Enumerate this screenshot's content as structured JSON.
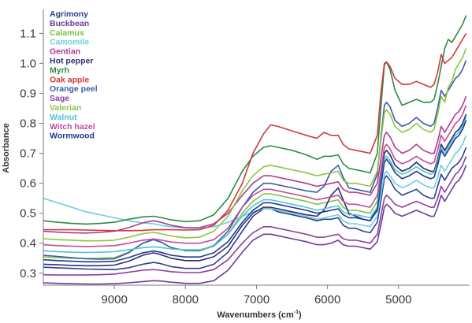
{
  "chart_data": {
    "type": "line",
    "xlabel": "Wavenumbers (cm",
    "xlabel_sup": "-1",
    "xlabel_close": ")",
    "ylabel": "Absorbance",
    "x_reversed": true,
    "xlim": [
      10000,
      4000
    ],
    "ylim": [
      0.26,
      1.18
    ],
    "x_ticks": [
      9000,
      8000,
      7000,
      6000,
      5000
    ],
    "y_ticks": [
      0.3,
      0.4,
      0.5,
      0.6,
      0.7,
      0.8,
      0.9,
      1.0,
      1.1
    ],
    "grid": false,
    "legend_position": "top-left",
    "x": [
      10000,
      9800,
      9600,
      9400,
      9200,
      9000,
      8800,
      8600,
      8450,
      8350,
      8200,
      8000,
      7800,
      7600,
      7400,
      7200,
      7050,
      6900,
      6800,
      6700,
      6500,
      6300,
      6150,
      6050,
      5950,
      5850,
      5780,
      5700,
      5600,
      5500,
      5400,
      5300,
      5250,
      5200,
      5170,
      5120,
      5050,
      4950,
      4850,
      4750,
      4650,
      4550,
      4500,
      4450,
      4400,
      4350,
      4300,
      4250,
      4200,
      4150,
      4100,
      4050
    ],
    "series": [
      {
        "name": "Agrimony",
        "color": "#2b3f8f",
        "values": [
          0.32,
          0.318,
          0.316,
          0.314,
          0.313,
          0.312,
          0.318,
          0.33,
          0.336,
          0.332,
          0.322,
          0.316,
          0.316,
          0.33,
          0.37,
          0.44,
          0.49,
          0.515,
          0.515,
          0.505,
          0.495,
          0.485,
          0.475,
          0.48,
          0.48,
          0.485,
          0.46,
          0.45,
          0.45,
          0.44,
          0.435,
          0.47,
          0.54,
          0.615,
          0.625,
          0.61,
          0.58,
          0.56,
          0.57,
          0.58,
          0.56,
          0.55,
          0.55,
          0.59,
          0.63,
          0.61,
          0.63,
          0.65,
          0.66,
          0.67,
          0.69,
          0.72
        ]
      },
      {
        "name": "Buckbean",
        "color": "#6a3d9a",
        "values": [
          0.268,
          0.266,
          0.265,
          0.264,
          0.264,
          0.265,
          0.268,
          0.272,
          0.275,
          0.274,
          0.27,
          0.266,
          0.266,
          0.275,
          0.31,
          0.37,
          0.41,
          0.43,
          0.43,
          0.425,
          0.415,
          0.405,
          0.395,
          0.395,
          0.4,
          0.41,
          0.395,
          0.39,
          0.39,
          0.385,
          0.38,
          0.405,
          0.46,
          0.52,
          0.53,
          0.52,
          0.5,
          0.49,
          0.5,
          0.51,
          0.5,
          0.49,
          0.49,
          0.52,
          0.56,
          0.54,
          0.56,
          0.58,
          0.6,
          0.61,
          0.63,
          0.66
        ]
      },
      {
        "name": "Calamus",
        "color": "#7dc243",
        "values": [
          0.355,
          0.352,
          0.35,
          0.349,
          0.35,
          0.352,
          0.37,
          0.4,
          0.415,
          0.405,
          0.385,
          0.375,
          0.375,
          0.39,
          0.43,
          0.5,
          0.54,
          0.565,
          0.565,
          0.56,
          0.55,
          0.54,
          0.53,
          0.535,
          0.54,
          0.545,
          0.52,
          0.51,
          0.51,
          0.505,
          0.5,
          0.54,
          0.62,
          0.7,
          0.71,
          0.695,
          0.66,
          0.64,
          0.65,
          0.67,
          0.65,
          0.64,
          0.64,
          0.68,
          0.73,
          0.71,
          0.73,
          0.75,
          0.77,
          0.78,
          0.8,
          0.83
        ]
      },
      {
        "name": "Camomile",
        "color": "#6ecde0",
        "values": [
          0.55,
          0.535,
          0.52,
          0.505,
          0.495,
          0.485,
          0.475,
          0.468,
          0.465,
          0.46,
          0.455,
          0.45,
          0.45,
          0.455,
          0.47,
          0.49,
          0.505,
          0.515,
          0.515,
          0.51,
          0.5,
          0.49,
          0.48,
          0.485,
          0.49,
          0.495,
          0.475,
          0.465,
          0.465,
          0.46,
          0.455,
          0.49,
          0.56,
          0.63,
          0.64,
          0.625,
          0.6,
          0.585,
          0.595,
          0.61,
          0.595,
          0.585,
          0.585,
          0.62,
          0.66,
          0.64,
          0.66,
          0.68,
          0.7,
          0.71,
          0.73,
          0.76
        ]
      },
      {
        "name": "Gentian",
        "color": "#b03a8f",
        "values": [
          0.44,
          0.437,
          0.435,
          0.434,
          0.436,
          0.44,
          0.452,
          0.468,
          0.475,
          0.47,
          0.46,
          0.452,
          0.452,
          0.465,
          0.5,
          0.56,
          0.6,
          0.625,
          0.625,
          0.62,
          0.61,
          0.6,
          0.59,
          0.595,
          0.6,
          0.605,
          0.58,
          0.57,
          0.57,
          0.565,
          0.56,
          0.6,
          0.68,
          0.76,
          0.77,
          0.755,
          0.72,
          0.7,
          0.71,
          0.73,
          0.71,
          0.7,
          0.7,
          0.74,
          0.79,
          0.77,
          0.79,
          0.81,
          0.83,
          0.84,
          0.86,
          0.89
        ]
      },
      {
        "name": "Hot pepper",
        "color": "#2e2f7a",
        "values": [
          0.33,
          0.328,
          0.326,
          0.325,
          0.325,
          0.327,
          0.34,
          0.36,
          0.368,
          0.362,
          0.35,
          0.342,
          0.342,
          0.355,
          0.39,
          0.46,
          0.5,
          0.52,
          0.52,
          0.515,
          0.505,
          0.495,
          0.49,
          0.51,
          0.56,
          0.585,
          0.545,
          0.5,
          0.49,
          0.48,
          0.475,
          0.52,
          0.61,
          0.7,
          0.71,
          0.695,
          0.66,
          0.64,
          0.65,
          0.67,
          0.65,
          0.64,
          0.64,
          0.68,
          0.73,
          0.71,
          0.73,
          0.75,
          0.77,
          0.78,
          0.8,
          0.83
        ]
      },
      {
        "name": "Myrh",
        "color": "#2e8b3e",
        "values": [
          0.475,
          0.47,
          0.466,
          0.464,
          0.466,
          0.47,
          0.48,
          0.488,
          0.49,
          0.486,
          0.478,
          0.472,
          0.475,
          0.495,
          0.55,
          0.64,
          0.69,
          0.72,
          0.725,
          0.72,
          0.71,
          0.695,
          0.68,
          0.69,
          0.69,
          0.695,
          0.665,
          0.65,
          0.645,
          0.64,
          0.635,
          0.7,
          0.85,
          0.995,
          1.005,
          0.98,
          0.91,
          0.86,
          0.87,
          0.88,
          0.87,
          0.87,
          0.88,
          0.93,
          0.99,
          1.05,
          1.08,
          1.07,
          1.09,
          1.11,
          1.13,
          1.16
        ]
      },
      {
        "name": "Oak apple",
        "color": "#d03a3a",
        "values": [
          0.445,
          0.445,
          0.445,
          0.444,
          0.443,
          0.442,
          0.442,
          0.443,
          0.445,
          0.445,
          0.445,
          0.444,
          0.445,
          0.46,
          0.51,
          0.6,
          0.7,
          0.765,
          0.795,
          0.79,
          0.775,
          0.76,
          0.75,
          0.77,
          0.76,
          0.76,
          0.73,
          0.715,
          0.71,
          0.705,
          0.7,
          0.76,
          0.9,
          1.0,
          1.005,
          0.99,
          0.95,
          0.93,
          0.93,
          0.94,
          0.93,
          0.92,
          0.93,
          0.97,
          1.03,
          1.0,
          1.01,
          1.02,
          1.04,
          1.06,
          1.08,
          1.1
        ]
      },
      {
        "name": "Orange peel",
        "color": "#3b5ba8",
        "values": [
          0.36,
          0.356,
          0.352,
          0.348,
          0.347,
          0.348,
          0.368,
          0.4,
          0.412,
          0.404,
          0.385,
          0.376,
          0.376,
          0.392,
          0.44,
          0.52,
          0.57,
          0.6,
          0.6,
          0.595,
          0.585,
          0.575,
          0.57,
          0.59,
          0.64,
          0.66,
          0.62,
          0.585,
          0.58,
          0.575,
          0.57,
          0.63,
          0.75,
          0.86,
          0.87,
          0.855,
          0.81,
          0.79,
          0.8,
          0.82,
          0.8,
          0.79,
          0.8,
          0.85,
          0.91,
          0.89,
          0.91,
          0.93,
          0.95,
          0.96,
          0.98,
          1.01
        ]
      },
      {
        "name": "Sage",
        "color": "#8e3fa0",
        "values": [
          0.295,
          0.294,
          0.294,
          0.294,
          0.295,
          0.297,
          0.303,
          0.31,
          0.312,
          0.31,
          0.305,
          0.302,
          0.302,
          0.312,
          0.345,
          0.4,
          0.435,
          0.455,
          0.455,
          0.45,
          0.44,
          0.43,
          0.42,
          0.42,
          0.425,
          0.43,
          0.415,
          0.41,
          0.41,
          0.405,
          0.4,
          0.43,
          0.49,
          0.55,
          0.56,
          0.55,
          0.53,
          0.52,
          0.53,
          0.54,
          0.53,
          0.52,
          0.52,
          0.55,
          0.59,
          0.57,
          0.59,
          0.61,
          0.63,
          0.64,
          0.66,
          0.69
        ]
      },
      {
        "name": "Valerian",
        "color": "#8cc63f",
        "values": [
          0.415,
          0.412,
          0.41,
          0.408,
          0.408,
          0.41,
          0.42,
          0.432,
          0.436,
          0.432,
          0.424,
          0.418,
          0.42,
          0.44,
          0.49,
          0.575,
          0.625,
          0.655,
          0.66,
          0.655,
          0.645,
          0.635,
          0.625,
          0.63,
          0.635,
          0.64,
          0.61,
          0.6,
          0.6,
          0.595,
          0.59,
          0.64,
          0.74,
          0.835,
          0.845,
          0.83,
          0.79,
          0.77,
          0.78,
          0.8,
          0.78,
          0.77,
          0.78,
          0.83,
          0.89,
          0.87,
          0.92,
          0.94,
          0.98,
          1.0,
          1.02,
          1.05
        ]
      },
      {
        "name": "Walnut",
        "color": "#4fc3d9",
        "values": [
          0.375,
          0.372,
          0.37,
          0.369,
          0.37,
          0.372,
          0.378,
          0.385,
          0.388,
          0.386,
          0.381,
          0.378,
          0.378,
          0.39,
          0.43,
          0.49,
          0.525,
          0.545,
          0.545,
          0.54,
          0.53,
          0.52,
          0.51,
          0.515,
          0.52,
          0.525,
          0.505,
          0.495,
          0.495,
          0.49,
          0.485,
          0.52,
          0.6,
          0.68,
          0.69,
          0.675,
          0.645,
          0.63,
          0.64,
          0.655,
          0.64,
          0.63,
          0.635,
          0.67,
          0.72,
          0.7,
          0.72,
          0.74,
          0.76,
          0.77,
          0.79,
          0.82
        ]
      },
      {
        "name": "Witch hazel",
        "color": "#c04aa0",
        "values": [
          0.395,
          0.392,
          0.39,
          0.389,
          0.39,
          0.392,
          0.4,
          0.41,
          0.414,
          0.411,
          0.404,
          0.4,
          0.4,
          0.412,
          0.45,
          0.52,
          0.56,
          0.58,
          0.58,
          0.575,
          0.565,
          0.555,
          0.545,
          0.55,
          0.555,
          0.56,
          0.54,
          0.53,
          0.53,
          0.525,
          0.52,
          0.56,
          0.64,
          0.72,
          0.73,
          0.715,
          0.68,
          0.665,
          0.675,
          0.69,
          0.675,
          0.665,
          0.67,
          0.71,
          0.76,
          0.74,
          0.76,
          0.78,
          0.8,
          0.81,
          0.83,
          0.86
        ]
      },
      {
        "name": "Wormwood",
        "color": "#1f3a8f",
        "values": [
          0.345,
          0.342,
          0.34,
          0.338,
          0.338,
          0.34,
          0.352,
          0.368,
          0.374,
          0.37,
          0.36,
          0.354,
          0.354,
          0.368,
          0.405,
          0.47,
          0.51,
          0.535,
          0.535,
          0.53,
          0.52,
          0.51,
          0.5,
          0.505,
          0.51,
          0.515,
          0.495,
          0.485,
          0.485,
          0.48,
          0.475,
          0.51,
          0.59,
          0.67,
          0.68,
          0.665,
          0.635,
          0.615,
          0.625,
          0.64,
          0.625,
          0.615,
          0.62,
          0.66,
          0.71,
          0.69,
          0.71,
          0.73,
          0.75,
          0.76,
          0.78,
          0.81
        ]
      }
    ]
  }
}
